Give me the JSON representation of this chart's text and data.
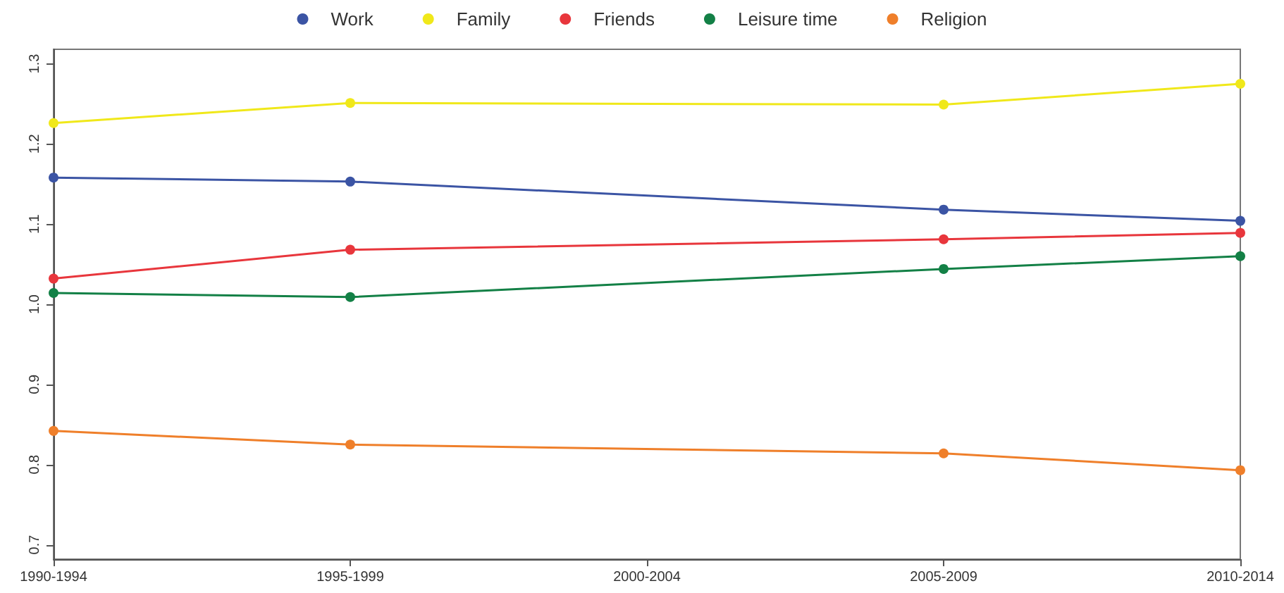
{
  "chart_data": {
    "type": "line",
    "categories": [
      "1990-1994",
      "1995-1999",
      "2000-2004",
      "2005-2009",
      "2010-2014"
    ],
    "series": [
      {
        "name": "Work",
        "color": "#3b54a4",
        "values": [
          1.158,
          1.153,
          null,
          1.118,
          1.104
        ]
      },
      {
        "name": "Family",
        "color": "#f0e81a",
        "values": [
          1.226,
          1.251,
          null,
          1.249,
          1.275
        ]
      },
      {
        "name": "Friends",
        "color": "#e8363c",
        "values": [
          1.032,
          1.068,
          null,
          1.081,
          1.089
        ]
      },
      {
        "name": "Leisure time",
        "color": "#138046",
        "values": [
          1.014,
          1.009,
          null,
          1.044,
          1.06
        ]
      },
      {
        "name": "Religion",
        "color": "#ef7f2a",
        "values": [
          0.842,
          0.825,
          null,
          0.814,
          0.793
        ]
      }
    ],
    "ylim": [
      0.682,
      1.318
    ],
    "yticks": [
      {
        "value": 0.7,
        "label": "0.7"
      },
      {
        "value": 0.8,
        "label": "0.8"
      },
      {
        "value": 0.9,
        "label": "0.9"
      },
      {
        "value": 1.0,
        "label": "1.0"
      },
      {
        "value": 1.1,
        "label": "1.1"
      },
      {
        "value": 1.2,
        "label": "1.2"
      },
      {
        "value": 1.3,
        "label": "1.3"
      }
    ],
    "legend": "top",
    "marker": "circle",
    "line_style": "solid",
    "grid": false
  }
}
